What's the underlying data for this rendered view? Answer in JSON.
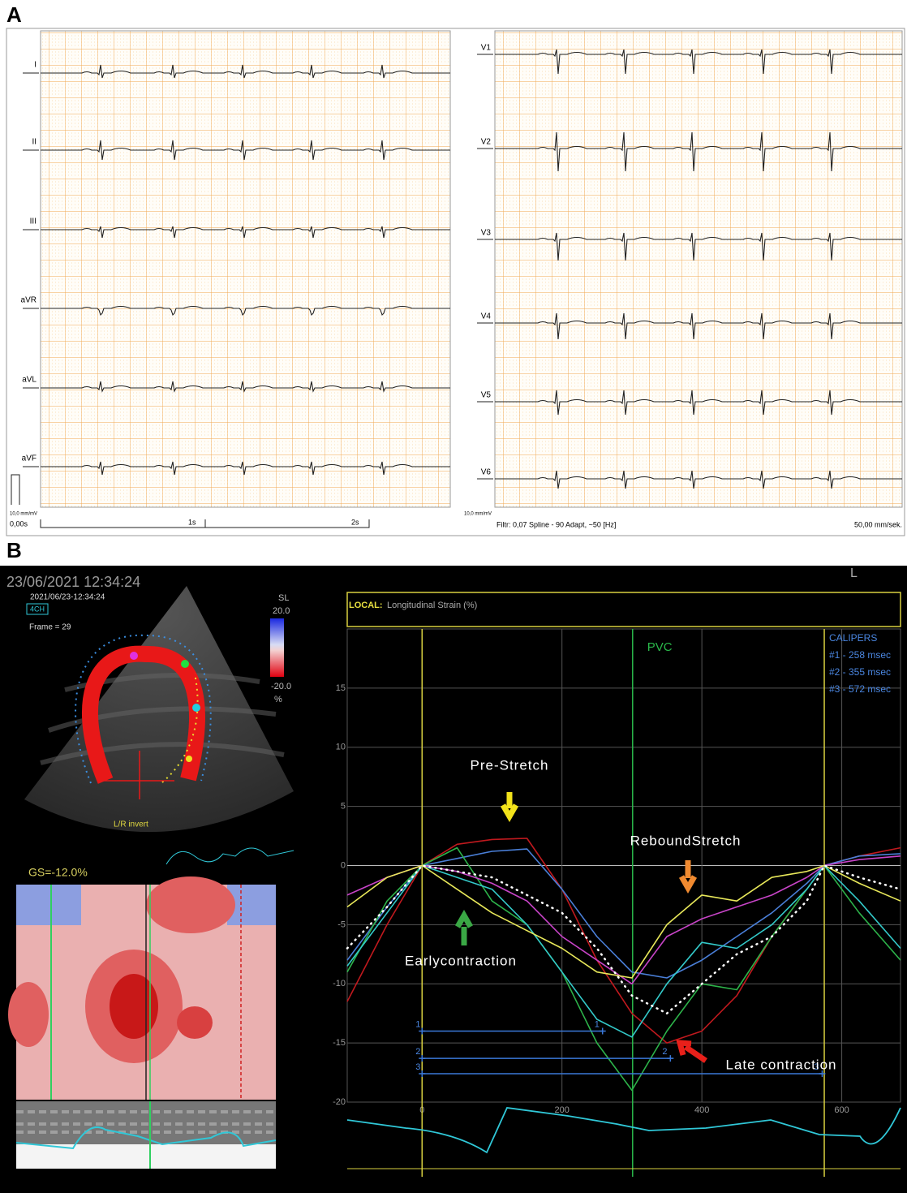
{
  "panel_a": {
    "label": "A",
    "leads_left": [
      "I",
      "II",
      "III",
      "aVR",
      "aVL",
      "aVF"
    ],
    "leads_right": [
      "V1",
      "V2",
      "V3",
      "V4",
      "V5",
      "V6"
    ],
    "calibration": "10,0 mm/mV",
    "time_labels": [
      "0,00s",
      "1s",
      "2s"
    ],
    "filter": "Filtr: 0,07 Spline - 90 Adapt, ~50 [Hz]",
    "speed": "50,00 mm/sek."
  },
  "panel_b": {
    "label": "B",
    "timestamp": "23/06/2021 12:34:24",
    "echo_timestamp": "2021/06/23-12:34:24",
    "view": "4CH",
    "frame": "Frame = 29",
    "scale_title": "SL",
    "scale_max": "20.0",
    "scale_min": "-20.0",
    "scale_unit": "%",
    "invert": "L/R invert",
    "global_strain": "GS=-12.0%",
    "side": "L"
  },
  "chart_data": {
    "type": "line",
    "title_prefix": "LOCAL:",
    "title": "Longitudinal Strain (%)",
    "x": [
      -107,
      -50,
      0,
      50,
      100,
      150,
      200,
      250,
      300,
      350,
      400,
      450,
      500,
      550,
      575,
      625,
      684
    ],
    "series": [
      {
        "color": "#c0191e",
        "values": [
          -11.5,
          -5,
          0,
          1.8,
          2.2,
          2.3,
          -2,
          -8,
          -12.5,
          -15,
          -14,
          -11,
          -6,
          -2,
          0,
          0.8,
          1.5
        ]
      },
      {
        "color": "#4a7fd8",
        "values": [
          -8,
          -3.5,
          0,
          0.6,
          1.2,
          1.4,
          -2,
          -6,
          -9,
          -9.5,
          -8,
          -6,
          -4,
          -1.5,
          0,
          0.8,
          1
        ]
      },
      {
        "color": "#2db34a",
        "values": [
          -9,
          -3,
          0,
          1.5,
          -3,
          -5,
          -9,
          -15,
          -19,
          -14,
          -10,
          -10.5,
          -6,
          -2,
          0,
          -4,
          -8
        ]
      },
      {
        "color": "#33c9c9",
        "values": [
          -8.5,
          -4,
          0,
          -1,
          -2,
          -5,
          -9,
          -13,
          -14.5,
          -10,
          -6.5,
          -7,
          -5,
          -2,
          0,
          -3,
          -7
        ]
      },
      {
        "color": "#c844c8",
        "values": [
          -2.5,
          -1,
          0,
          -0.5,
          -1.5,
          -3,
          -6,
          -8,
          -10,
          -6,
          -4.5,
          -3.5,
          -2.5,
          -1,
          0,
          0.5,
          0.8
        ]
      },
      {
        "color": "#e8e85a",
        "values": [
          -3.5,
          -1,
          0,
          -2,
          -4,
          -5.5,
          -7,
          -9,
          -9.5,
          -5,
          -2.5,
          -3,
          -1,
          -0.5,
          0,
          -1.5,
          -3
        ]
      },
      {
        "color": "#ffffff",
        "dotted": true,
        "values": [
          -7,
          -3.5,
          0,
          -0.5,
          -1,
          -2.5,
          -4,
          -7,
          -11,
          -12.5,
          -10,
          -7.5,
          -6,
          -3,
          0,
          -1,
          -2
        ]
      }
    ],
    "xlim": [
      -107,
      684
    ],
    "ylim": [
      -20,
      20
    ],
    "xticks": [
      0,
      200,
      400,
      600
    ],
    "yticks": [
      -20,
      -15,
      -10,
      -5,
      0,
      5,
      10,
      15
    ],
    "grid": true,
    "reference_lines": [
      {
        "x": 0,
        "color": "#d8d040"
      },
      {
        "x": 575,
        "color": "#d8d040"
      },
      {
        "x": 301,
        "color": "#2ab84a",
        "label": "PVC"
      }
    ],
    "annotations": [
      {
        "text": "Pre-Stretch",
        "color": "#f2e21a"
      },
      {
        "text": "ReboundStretch",
        "color": "#f08a30"
      },
      {
        "text": "Earlycontraction",
        "color": "#3aa845"
      },
      {
        "text": "Late contraction",
        "color": "#e8201a"
      }
    ],
    "calipers_title": "CALIPERS",
    "calipers": [
      {
        "label": "#1 - 258 msec",
        "marker": "1",
        "start": 0,
        "end": 258,
        "y": -14
      },
      {
        "label": "#2 - 355 msec",
        "marker": "2",
        "start": 0,
        "end": 355,
        "y": -16.3
      },
      {
        "label": "#3 - 572 msec",
        "marker": "3",
        "start": 0,
        "end": 572,
        "y": -17.6
      }
    ]
  }
}
